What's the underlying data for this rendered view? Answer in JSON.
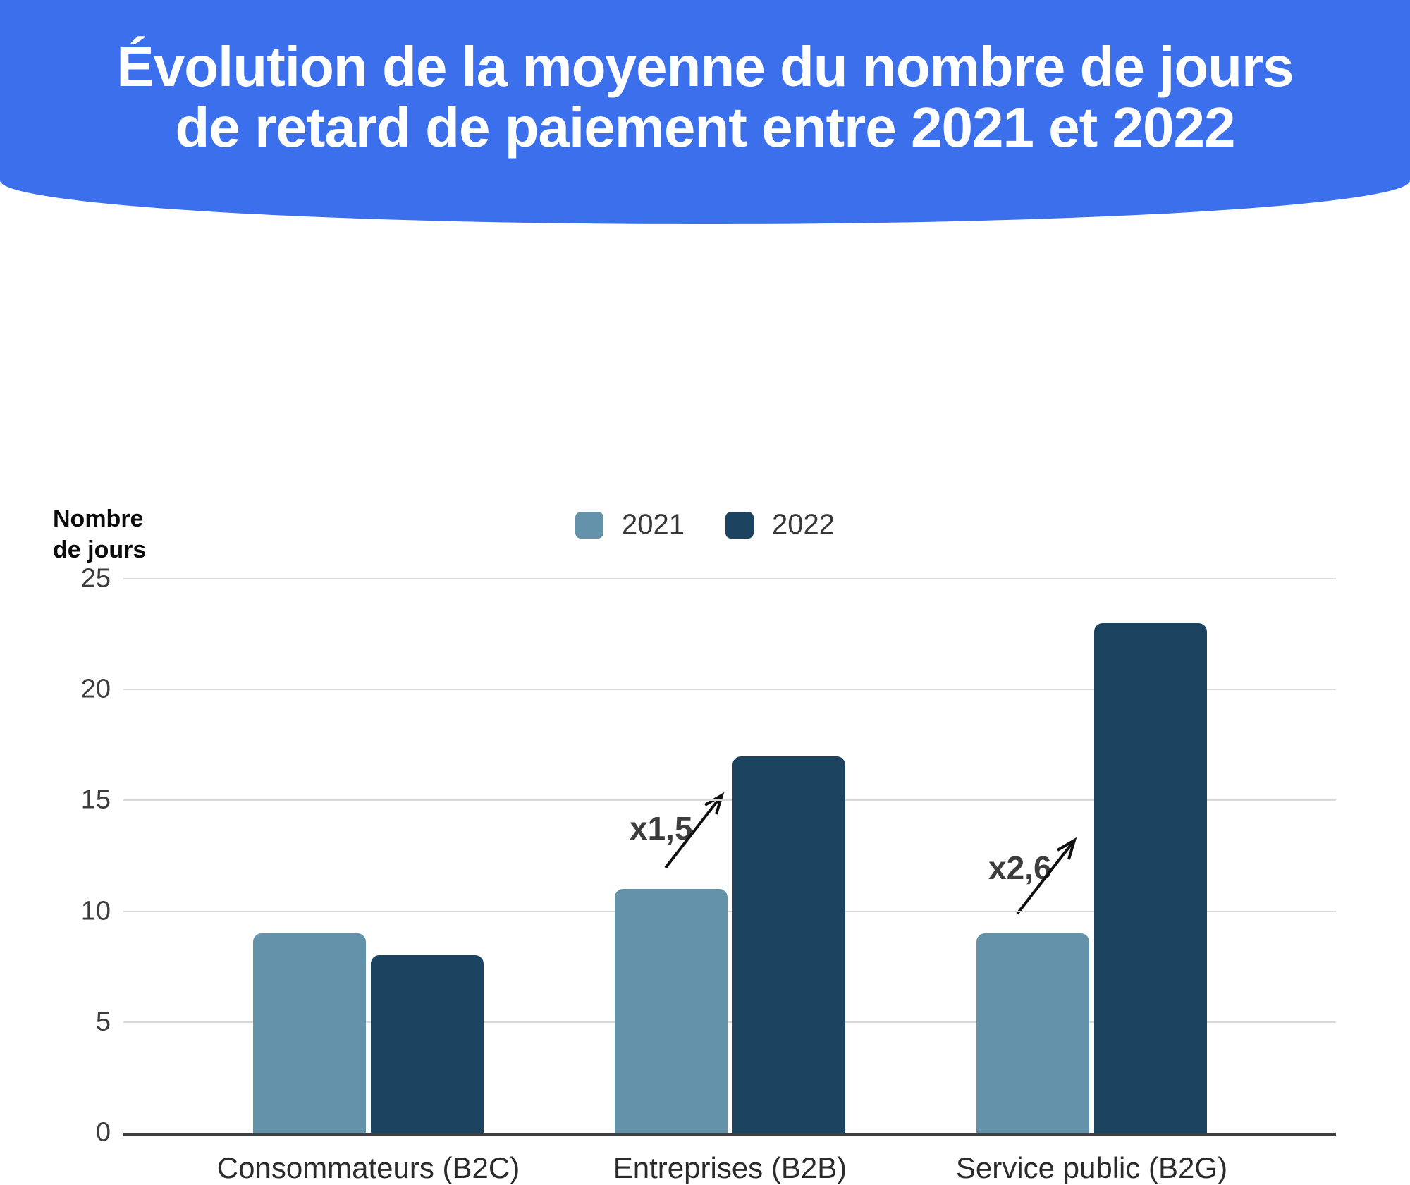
{
  "header": {
    "title_line1": "Évolution de la moyenne du nombre de jours",
    "title_line2": "de retard de paiement entre 2021 et 2022"
  },
  "y_axis": {
    "label_line1": "Nombre",
    "label_line2": "de jours",
    "ticks": [
      0,
      5,
      10,
      15,
      20,
      25
    ]
  },
  "legend": {
    "items": [
      {
        "label": "2021",
        "color": "#6592AB"
      },
      {
        "label": "2022",
        "color": "#1C4460"
      }
    ]
  },
  "chart_data": {
    "type": "bar",
    "title": "Évolution de la moyenne du nombre de jours de retard de paiement entre 2021 et 2022",
    "categories": [
      "Consommateurs (B2C)",
      "Entreprises (B2B)",
      "Service public (B2G)"
    ],
    "series": [
      {
        "name": "2021",
        "color": "#6592AB",
        "values": [
          9,
          11,
          9
        ]
      },
      {
        "name": "2022",
        "color": "#1C4460",
        "values": [
          8,
          17,
          23
        ]
      }
    ],
    "xlabel": "",
    "ylabel": "Nombre de jours",
    "ylim": [
      0,
      25
    ],
    "grid": true,
    "legend_position": "top-center",
    "annotations": [
      {
        "text": "x1,5",
        "category": "Entreprises (B2B)",
        "meaning": "increase from 11 to 17 days"
      },
      {
        "text": "x2,6",
        "category": "Service public (B2G)",
        "meaning": "increase from 9 to 23 days"
      }
    ]
  },
  "colors": {
    "banner_background": "#3B6FEC",
    "title_text": "#ffffff",
    "gridline": "#d9d9d9",
    "axis_line": "#3f3f3f",
    "annotation_arrow": "#101010"
  }
}
